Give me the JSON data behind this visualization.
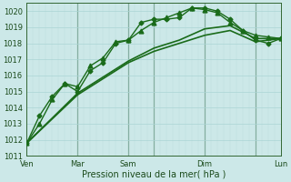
{
  "xlabel": "Pression niveau de la mer( hPa )",
  "background_color": "#cce8e8",
  "grid_color_major": "#aad4d4",
  "grid_color_minor": "#bbdddd",
  "line_color": "#1a6b1a",
  "ylim": [
    1011,
    1020.5
  ],
  "ytick_min": 1011,
  "ytick_max": 1020,
  "xlim_max": 240,
  "series": [
    {
      "x": [
        0,
        48,
        96,
        120,
        144,
        168,
        192,
        216,
        240
      ],
      "y": [
        1011.8,
        1014.8,
        1016.8,
        1017.5,
        1018.0,
        1018.5,
        1018.8,
        1018.1,
        1018.3
      ],
      "marker": null,
      "markersize": 0,
      "linewidth": 1.2
    },
    {
      "x": [
        0,
        48,
        96,
        120,
        144,
        168,
        192,
        216,
        240
      ],
      "y": [
        1011.8,
        1014.9,
        1016.9,
        1017.7,
        1018.2,
        1018.9,
        1019.1,
        1018.3,
        1018.3
      ],
      "marker": null,
      "markersize": 0,
      "linewidth": 1.2
    },
    {
      "x": [
        0,
        12,
        24,
        36,
        48,
        60,
        72,
        84,
        96,
        108,
        120,
        132,
        144,
        156,
        168,
        180,
        192,
        204,
        216,
        228,
        240
      ],
      "y": [
        1011.8,
        1013.5,
        1014.7,
        1015.5,
        1015.0,
        1016.3,
        1016.8,
        1018.0,
        1018.2,
        1019.3,
        1019.5,
        1019.5,
        1019.6,
        1020.2,
        1020.2,
        1020.0,
        1019.5,
        1018.8,
        1018.2,
        1018.0,
        1018.3
      ],
      "marker": "D",
      "markersize": 2.5,
      "linewidth": 1.0
    },
    {
      "x": [
        0,
        12,
        24,
        36,
        48,
        60,
        72,
        84,
        96,
        108,
        120,
        132,
        144,
        156,
        168,
        180,
        192,
        204,
        216,
        228,
        240
      ],
      "y": [
        1011.8,
        1013.0,
        1014.5,
        1015.5,
        1015.3,
        1016.6,
        1017.1,
        1018.1,
        1018.2,
        1018.8,
        1019.3,
        1019.6,
        1019.9,
        1020.2,
        1020.1,
        1019.9,
        1019.3,
        1018.8,
        1018.5,
        1018.4,
        1018.3
      ],
      "marker": "^",
      "markersize": 3.5,
      "linewidth": 1.0
    }
  ],
  "vline_positions": [
    48,
    96,
    120,
    168,
    216
  ],
  "day_positions": [
    0,
    48,
    96,
    120,
    168,
    216,
    240
  ],
  "day_labels": [
    "Ven",
    "Mar",
    "Sam",
    "",
    "Dim",
    "",
    "Lun"
  ]
}
